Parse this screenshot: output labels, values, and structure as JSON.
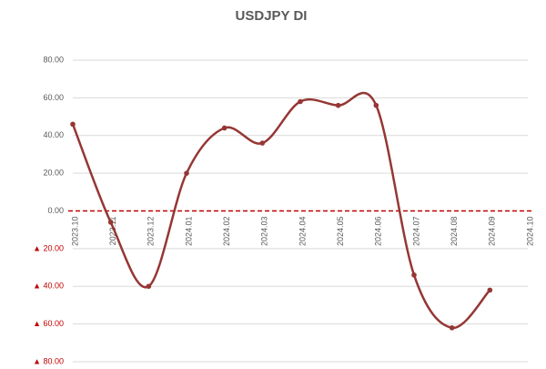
{
  "chart_data": {
    "type": "line",
    "title": "USDJPY DI",
    "categories": [
      "2023.10",
      "2023.11",
      "2023.12",
      "2024.01",
      "2024.02",
      "2024.03",
      "2024.04",
      "2024.05",
      "2024.06",
      "2024.07",
      "2024.08",
      "2024.09",
      "2024.10"
    ],
    "series": [
      {
        "name": "USDJPY DI",
        "color": "#953735",
        "values": [
          46,
          -6,
          -40,
          20,
          44,
          36,
          58,
          56,
          56,
          -34,
          -62,
          -42,
          null
        ]
      }
    ],
    "ylim": [
      -80,
      80
    ],
    "yticks": [
      {
        "value": 80,
        "label": "80.00"
      },
      {
        "value": 60,
        "label": "60.00"
      },
      {
        "value": 40,
        "label": "40.00"
      },
      {
        "value": 20,
        "label": "20.00"
      },
      {
        "value": 0,
        "label": "0.00"
      },
      {
        "value": -20,
        "label": "▲ 20.00"
      },
      {
        "value": -40,
        "label": "▲ 40.00"
      },
      {
        "value": -60,
        "label": "▲ 60.00"
      },
      {
        "value": -80,
        "label": "▲ 80.00"
      }
    ],
    "grid": true
  }
}
